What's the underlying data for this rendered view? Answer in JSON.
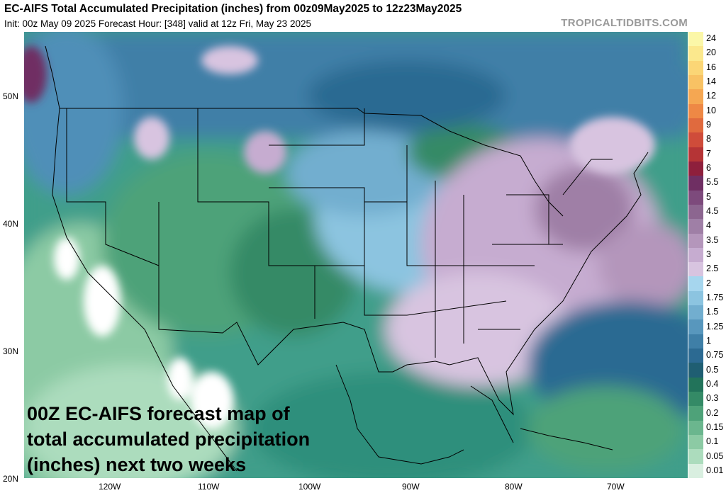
{
  "header": {
    "title": "EC-AIFS Total Accumulated Precipitation (inches) from 00z09May2025 to 12z23May2025",
    "subtitle": "Init: 00z May 09 2025   Forecast Hour: [348]   valid at 12z Fri, May 23 2025",
    "brand": "TROPICALTIDBITS.COM"
  },
  "overlay": {
    "line1": "00Z EC-AIFS forecast map of",
    "line2": "total accumulated precipitation",
    "line3": "(inches) next two weeks"
  },
  "axes": {
    "lat_labels": [
      "50N",
      "40N",
      "30N",
      "20N"
    ],
    "lon_labels": [
      "120W",
      "110W",
      "100W",
      "90W",
      "80W",
      "70W"
    ]
  },
  "legend": {
    "levels": [
      {
        "label": "24",
        "color": "#fbf7a8"
      },
      {
        "label": "20",
        "color": "#fbe88d"
      },
      {
        "label": "16",
        "color": "#fbd676"
      },
      {
        "label": "14",
        "color": "#f8c264"
      },
      {
        "label": "12",
        "color": "#f5a752"
      },
      {
        "label": "10",
        "color": "#ee8845"
      },
      {
        "label": "9",
        "color": "#e06a3e"
      },
      {
        "label": "8",
        "color": "#cf4c3a"
      },
      {
        "label": "7",
        "color": "#b53436"
      },
      {
        "label": "6",
        "color": "#8e1f3c"
      },
      {
        "label": "5.5",
        "color": "#6f2f63"
      },
      {
        "label": "5",
        "color": "#7d4a7c"
      },
      {
        "label": "4.5",
        "color": "#8c6690"
      },
      {
        "label": "4",
        "color": "#9f7fa6"
      },
      {
        "label": "3.5",
        "color": "#b496bb"
      },
      {
        "label": "3",
        "color": "#c6acd0"
      },
      {
        "label": "2.5",
        "color": "#d8c4e0"
      },
      {
        "label": "2",
        "color": "#a6d6ee"
      },
      {
        "label": "1.75",
        "color": "#8cc4e0"
      },
      {
        "label": "1.5",
        "color": "#72aecf"
      },
      {
        "label": "1.25",
        "color": "#5897bd"
      },
      {
        "label": "1",
        "color": "#3f7fa7"
      },
      {
        "label": "0.75",
        "color": "#2c6a92"
      },
      {
        "label": "0.5",
        "color": "#1f5e72"
      },
      {
        "label": "0.4",
        "color": "#22735a"
      },
      {
        "label": "0.3",
        "color": "#348a66"
      },
      {
        "label": "0.2",
        "color": "#4ea279"
      },
      {
        "label": "0.15",
        "color": "#6bb68e"
      },
      {
        "label": "0.1",
        "color": "#8ccaa4"
      },
      {
        "label": "0.05",
        "color": "#acdcbd"
      },
      {
        "label": "0.01",
        "color": "#d9efe0"
      }
    ]
  },
  "colors": {
    "ocean_west": "#7cc4a8",
    "ocean_gulf": "#3f9e8a",
    "atlantic": "#2f7f9a",
    "plains_green": "#3d8f6e",
    "midwest_blue": "#7ab8d6",
    "east_purple": "#b78fc4",
    "dry_white": "#ffffff",
    "border_lines": "#000000"
  }
}
